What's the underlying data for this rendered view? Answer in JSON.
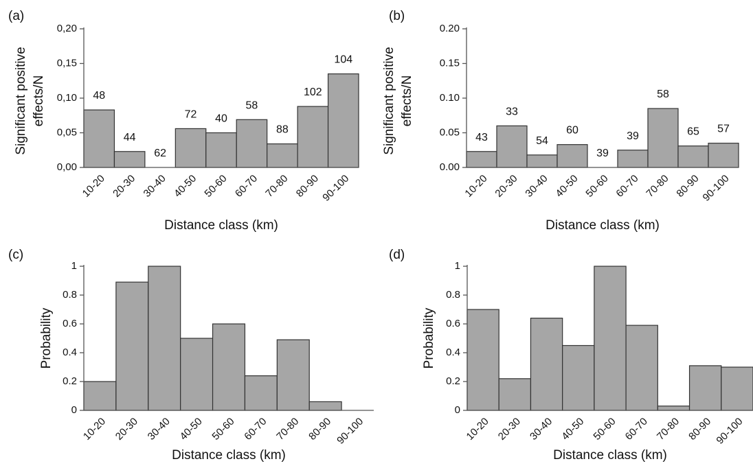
{
  "style": {
    "bar_color": "#a6a6a6",
    "bar_edge": "#333333",
    "axis_color": "#555555",
    "text_color": "#111111"
  },
  "chart_data": [
    {
      "panel": "(a)",
      "type": "bar",
      "categories": [
        "10-20",
        "20-30",
        "30-40",
        "40-50",
        "50-60",
        "60-70",
        "70-80",
        "80-90",
        "90-100"
      ],
      "values": [
        0.083,
        0.023,
        0.0,
        0.056,
        0.05,
        0.069,
        0.034,
        0.088,
        0.135
      ],
      "data_labels": [
        "48",
        "44",
        "62",
        "72",
        "40",
        "58",
        "88",
        "102",
        "104"
      ],
      "ylabel": [
        "Significant positive",
        "effects/N"
      ],
      "xlabel": "Distance class (km)",
      "ylim": [
        0,
        0.2
      ],
      "yticks": [
        "0,00",
        "0,05",
        "0,10",
        "0,15",
        "0,20"
      ],
      "ytick_values": [
        0,
        0.05,
        0.1,
        0.15,
        0.2
      ],
      "grid": false
    },
    {
      "panel": "(b)",
      "type": "bar",
      "categories": [
        "10-20",
        "20-30",
        "30-40",
        "40-50",
        "50-60",
        "60-70",
        "70-80",
        "80-90",
        "90-100"
      ],
      "values": [
        0.023,
        0.06,
        0.018,
        0.033,
        0.0,
        0.025,
        0.085,
        0.031,
        0.035
      ],
      "data_labels": [
        "43",
        "33",
        "54",
        "60",
        "39",
        "39",
        "58",
        "65",
        "57"
      ],
      "ylabel": [
        "Significant positive",
        "effects/N"
      ],
      "xlabel": "Distance class (km)",
      "ylim": [
        0,
        0.2
      ],
      "yticks": [
        "0.00",
        "0.05",
        "0.10",
        "0.15",
        "0.20"
      ],
      "ytick_values": [
        0,
        0.05,
        0.1,
        0.15,
        0.2
      ],
      "grid": false
    },
    {
      "panel": "(c)",
      "type": "bar",
      "categories": [
        "10-20",
        "20-30",
        "30-40",
        "40-50",
        "50-60",
        "60-70",
        "70-80",
        "80-90",
        "90-100"
      ],
      "values": [
        0.2,
        0.89,
        1.0,
        0.5,
        0.6,
        0.24,
        0.49,
        0.06,
        0.0
      ],
      "ylabel": [
        "Probability"
      ],
      "xlabel": "Distance class (km)",
      "ylim": [
        0,
        1
      ],
      "yticks": [
        "0",
        "0.2",
        "0.4",
        "0.6",
        "0.8",
        "1"
      ],
      "ytick_values": [
        0,
        0.2,
        0.4,
        0.6,
        0.8,
        1
      ],
      "grid": false
    },
    {
      "panel": "(d)",
      "type": "bar",
      "categories": [
        "10-20",
        "20-30",
        "30-40",
        "40-50",
        "50-60",
        "60-70",
        "70-80",
        "80-90",
        "90-100"
      ],
      "values": [
        0.7,
        0.22,
        0.64,
        0.45,
        1.0,
        0.59,
        0.03,
        0.31,
        0.3
      ],
      "ylabel": [
        "Probability"
      ],
      "xlabel": "Distance class (km)",
      "ylim": [
        0,
        1
      ],
      "yticks": [
        "0",
        "0.2",
        "0.4",
        "0.6",
        "0.8",
        "1"
      ],
      "ytick_values": [
        0,
        0.2,
        0.4,
        0.6,
        0.8,
        1
      ],
      "grid": false
    }
  ]
}
